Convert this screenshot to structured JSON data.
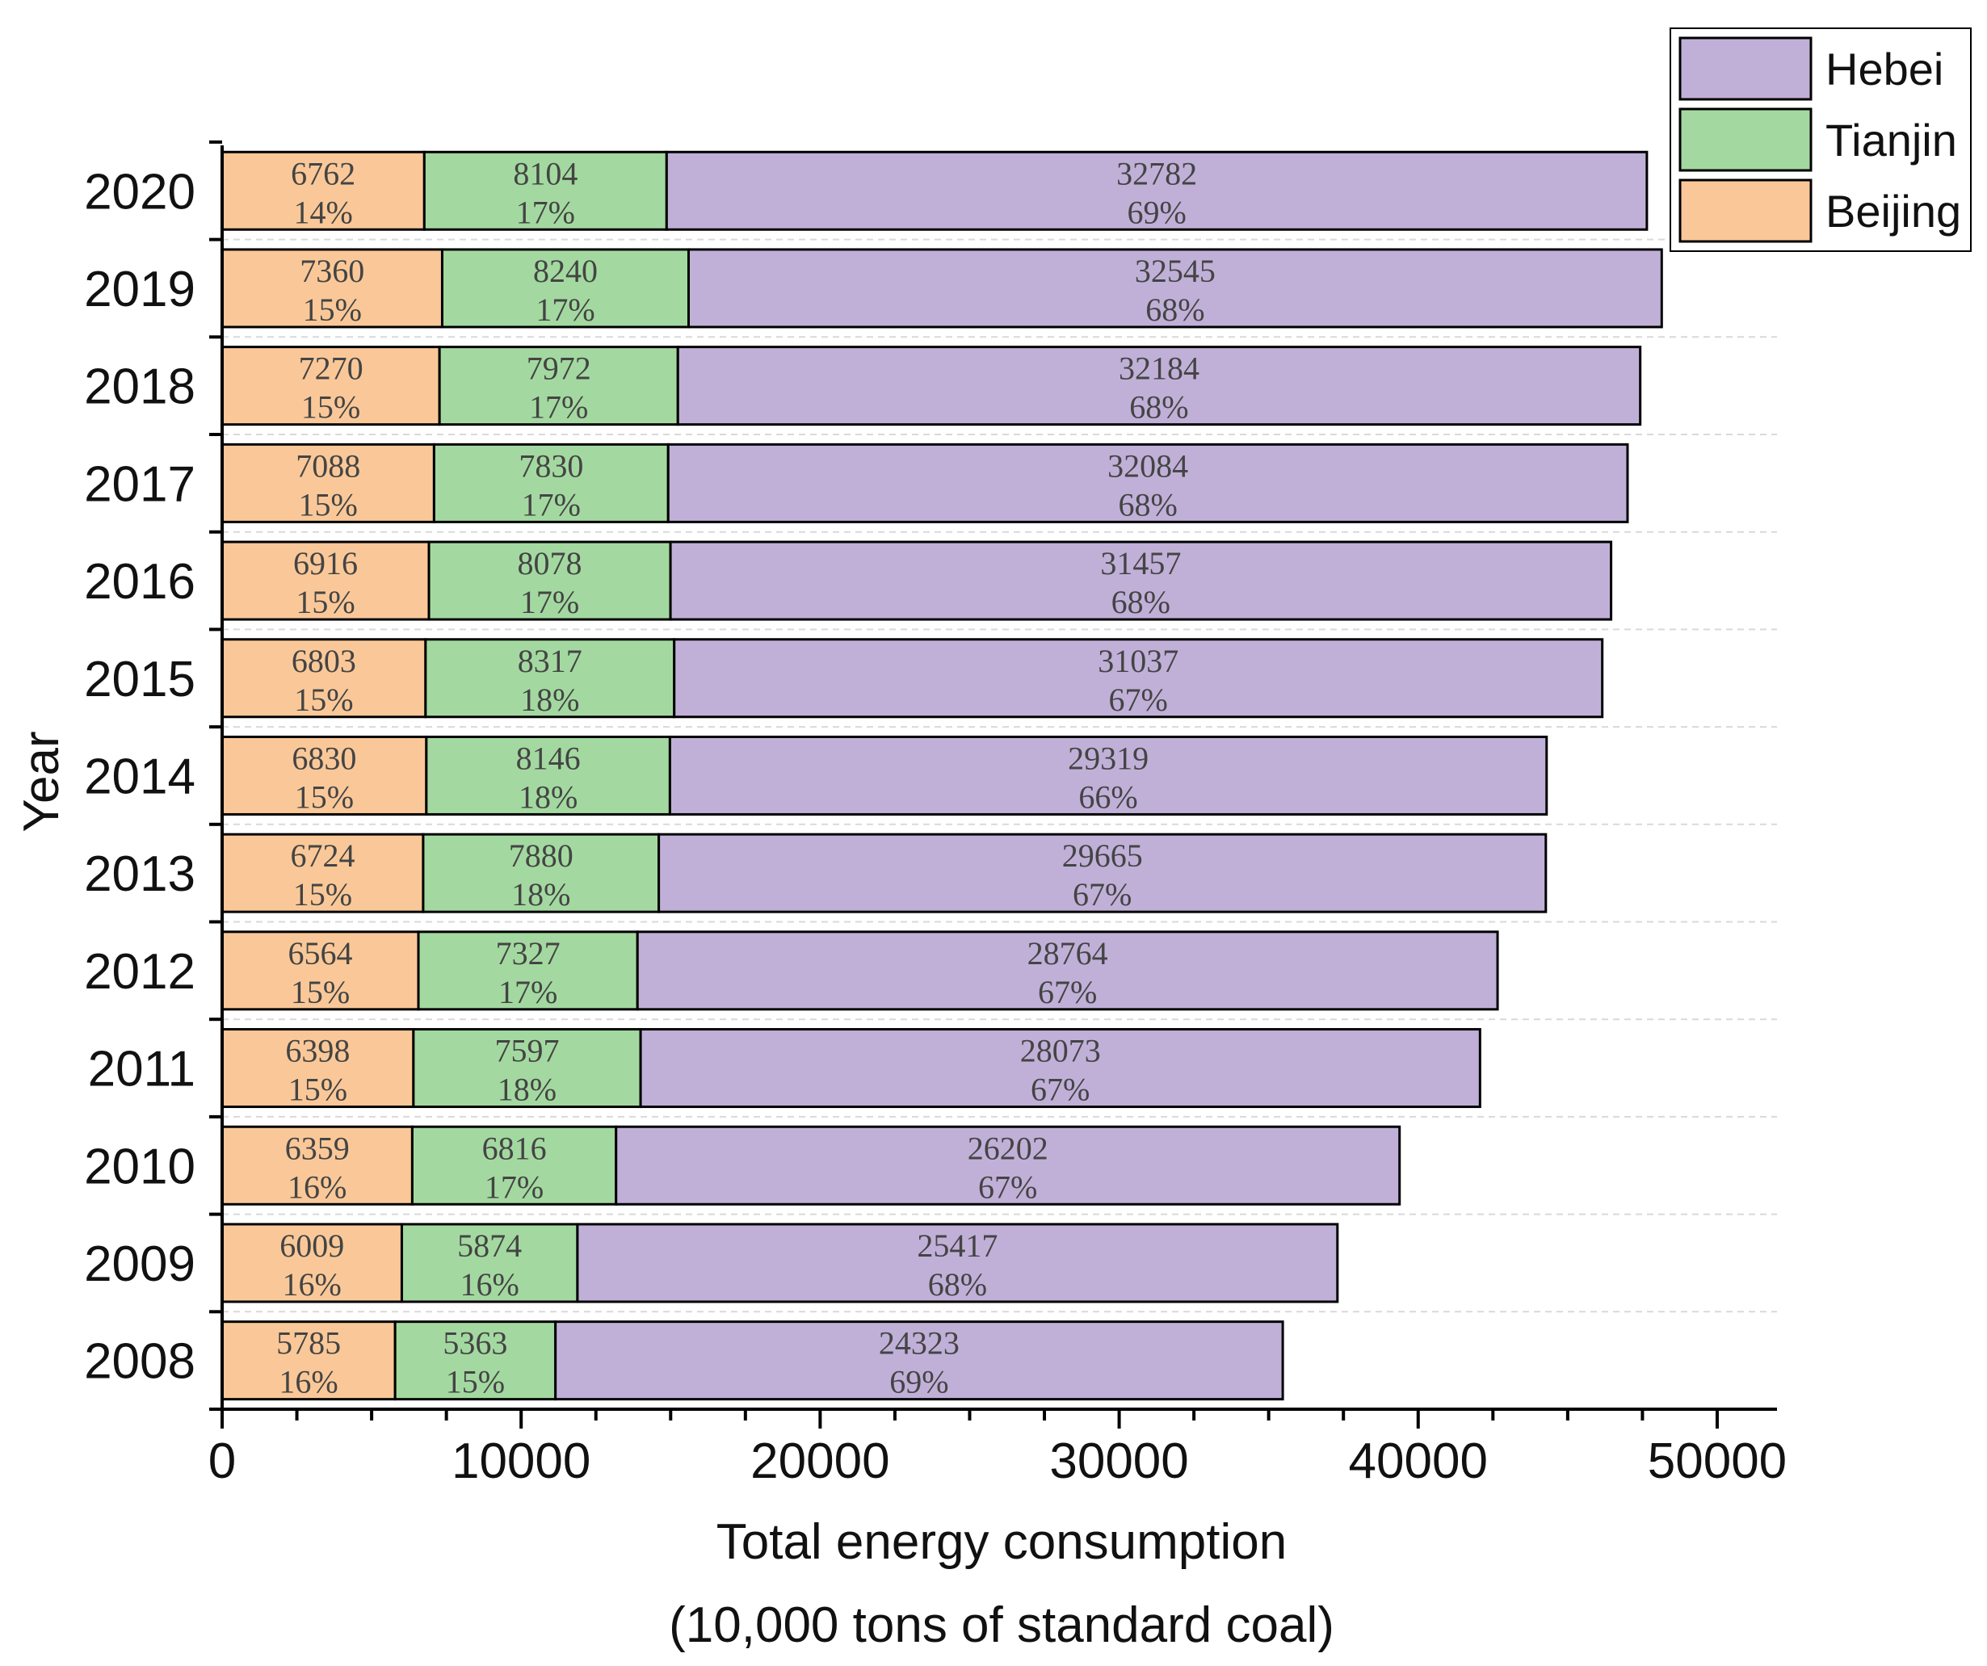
{
  "chart_data": {
    "type": "bar",
    "orientation": "horizontal",
    "stacked": true,
    "categories": [
      "2008",
      "2009",
      "2010",
      "2011",
      "2012",
      "2013",
      "2014",
      "2015",
      "2016",
      "2017",
      "2018",
      "2019",
      "2020"
    ],
    "series": [
      {
        "name": "Beijing",
        "color": "#fac898",
        "values": [
          5785,
          6009,
          6359,
          6398,
          6564,
          6724,
          6830,
          6803,
          6916,
          7088,
          7270,
          7360,
          6762
        ],
        "percent_labels": [
          "16%",
          "16%",
          "16%",
          "15%",
          "15%",
          "15%",
          "15%",
          "15%",
          "15%",
          "15%",
          "15%",
          "15%",
          "14%"
        ]
      },
      {
        "name": "Tianjin",
        "color": "#a3d9a0",
        "values": [
          5363,
          5874,
          6816,
          7597,
          7327,
          7880,
          8146,
          8317,
          8078,
          7830,
          7972,
          8240,
          8104
        ],
        "percent_labels": [
          "15%",
          "16%",
          "17%",
          "18%",
          "17%",
          "18%",
          "18%",
          "18%",
          "17%",
          "17%",
          "17%",
          "17%",
          "17%"
        ]
      },
      {
        "name": "Hebei",
        "color": "#c0b0d8",
        "values": [
          24323,
          25417,
          26202,
          28073,
          28764,
          29665,
          29319,
          31037,
          31457,
          32084,
          32184,
          32545,
          32782
        ],
        "percent_labels": [
          "69%",
          "68%",
          "67%",
          "67%",
          "67%",
          "67%",
          "66%",
          "67%",
          "68%",
          "68%",
          "68%",
          "68%",
          "69%"
        ]
      }
    ],
    "xlabel": [
      "Total energy consumption",
      "(10,000 tons of standard coal)"
    ],
    "ylabel": "Year",
    "xlim": [
      0,
      52000
    ],
    "xticks": [
      0,
      10000,
      20000,
      30000,
      40000,
      50000
    ],
    "xtick_labels": [
      "0",
      "10000",
      "20000",
      "30000",
      "40000",
      "50000"
    ],
    "legend_position": "top-right",
    "legend_order": [
      "Hebei",
      "Tianjin",
      "Beijing"
    ],
    "grid": "dashed horizontal"
  }
}
